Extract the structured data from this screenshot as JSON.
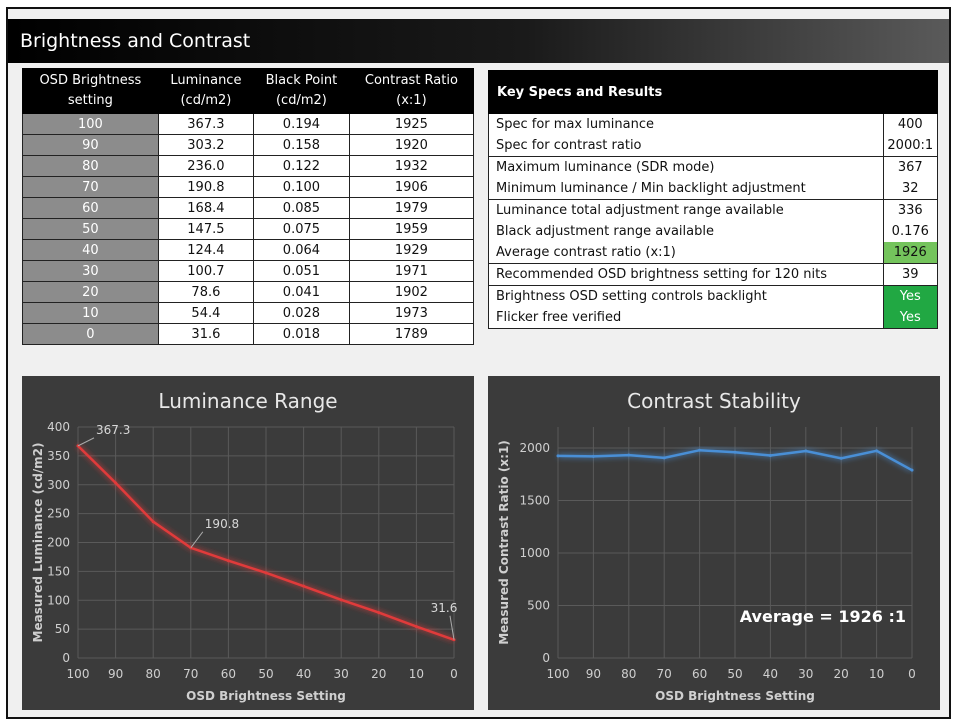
{
  "page_title": "Brightness and Contrast",
  "measurements": {
    "headers": [
      [
        "OSD Brightness",
        "setting"
      ],
      [
        "Luminance",
        "(cd/m2)"
      ],
      [
        "Black Point",
        "(cd/m2)"
      ],
      [
        "Contrast Ratio",
        "(x:1)"
      ]
    ],
    "rows": [
      [
        "100",
        "367.3",
        "0.194",
        "1925"
      ],
      [
        "90",
        "303.2",
        "0.158",
        "1920"
      ],
      [
        "80",
        "236.0",
        "0.122",
        "1932"
      ],
      [
        "70",
        "190.8",
        "0.100",
        "1906"
      ],
      [
        "60",
        "168.4",
        "0.085",
        "1979"
      ],
      [
        "50",
        "147.5",
        "0.075",
        "1959"
      ],
      [
        "40",
        "124.4",
        "0.064",
        "1929"
      ],
      [
        "30",
        "100.7",
        "0.051",
        "1971"
      ],
      [
        "20",
        "78.6",
        "0.041",
        "1902"
      ],
      [
        "10",
        "54.4",
        "0.028",
        "1973"
      ],
      [
        "0",
        "31.6",
        "0.018",
        "1789"
      ]
    ]
  },
  "specs": {
    "title": "Key Specs and Results",
    "rows": [
      {
        "label": "Spec for max luminance",
        "value": "400",
        "style": "",
        "group_start": true
      },
      {
        "label": "Spec for contrast ratio",
        "value": "2000:1",
        "style": "",
        "group_start": false
      },
      {
        "label": "Maximum luminance (SDR mode)",
        "value": "367",
        "style": "",
        "group_start": true
      },
      {
        "label": "Minimum luminance / Min backlight adjustment",
        "value": "32",
        "style": "",
        "group_start": false
      },
      {
        "label": "Luminance total adjustment range available",
        "value": "336",
        "style": "",
        "group_start": true
      },
      {
        "label": "Black adjustment range available",
        "value": "0.176",
        "style": "",
        "group_start": false
      },
      {
        "label": "Average contrast ratio (x:1)",
        "value": "1926",
        "style": "lgreen",
        "group_start": false
      },
      {
        "label": "Recommended OSD brightness setting for 120 nits",
        "value": "39",
        "style": "",
        "group_start": true
      },
      {
        "label": "Brightness OSD setting controls backlight",
        "value": "Yes",
        "style": "green",
        "group_start": true
      },
      {
        "label": "Flicker free verified",
        "value": "Yes",
        "style": "green",
        "group_start": false
      }
    ],
    "colors": {
      "green": "#21a843",
      "light_green": "#74c45c"
    }
  },
  "chart_data": [
    {
      "type": "line",
      "title": "Luminance Range",
      "xlabel": "OSD Brightness Setting",
      "ylabel": "Measured Luminance (cd/m2)",
      "x": [
        100,
        90,
        80,
        70,
        60,
        50,
        40,
        30,
        20,
        10,
        0
      ],
      "x_reversed": true,
      "ylim": [
        0,
        400
      ],
      "yticks": [
        0,
        50,
        100,
        150,
        200,
        250,
        300,
        350,
        400
      ],
      "series": [
        {
          "values": [
            367.3,
            303.2,
            236.0,
            190.8,
            168.4,
            147.5,
            124.4,
            100.7,
            78.6,
            54.4,
            31.6
          ],
          "color": "#e03a3a"
        }
      ],
      "annotations": [
        {
          "x": 100,
          "y": 367.3,
          "text": "367.3"
        },
        {
          "x": 70,
          "y": 190.8,
          "text": "190.8"
        },
        {
          "x": 0,
          "y": 31.6,
          "text": "31.6"
        }
      ],
      "grid": true
    },
    {
      "type": "line",
      "title": "Contrast Stability",
      "xlabel": "OSD Brightness Setting",
      "ylabel": "Measured Contrast Ratio (x:1)",
      "x": [
        100,
        90,
        80,
        70,
        60,
        50,
        40,
        30,
        20,
        10,
        0
      ],
      "x_reversed": true,
      "ylim": [
        0,
        2200
      ],
      "yticks": [
        0,
        500,
        1000,
        1500,
        2000
      ],
      "series": [
        {
          "values": [
            1925,
            1920,
            1932,
            1906,
            1979,
            1959,
            1929,
            1971,
            1902,
            1973,
            1789
          ],
          "color": "#4a8fd6"
        }
      ],
      "average_label": "Average =  1926 :1",
      "grid": true
    }
  ]
}
